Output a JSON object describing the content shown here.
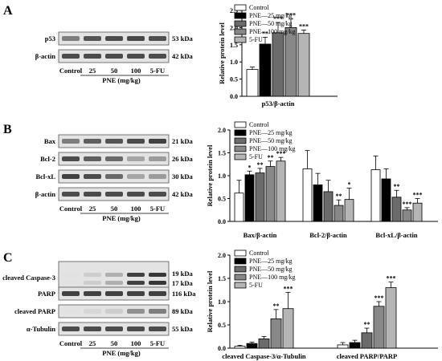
{
  "panels": [
    {
      "letter": "A",
      "blot": {
        "rows": [
          {
            "name": "p53",
            "kda": "53 kDa",
            "intensity": [
              0.55,
              0.75,
              0.8,
              0.82,
              0.78
            ]
          },
          {
            "name": "β-actin",
            "kda": "42 kDa",
            "intensity": [
              0.8,
              0.8,
              0.8,
              0.8,
              0.8
            ]
          }
        ],
        "lanes": [
          "Control",
          "25",
          "50",
          "100",
          "5-FU"
        ],
        "xlabel": "PNE (mg/kg)"
      },
      "chart_data": {
        "type": "bar",
        "ylabel": "Relative protein level",
        "ylim": [
          0,
          2.5
        ],
        "yticks": [
          "0.0",
          "0.5",
          "1.0",
          "1.5",
          "2.0",
          "2.5"
        ],
        "categories": [
          "p53/β-actin"
        ],
        "series": [
          {
            "name": "Control",
            "values": [
              0.78
            ],
            "err": [
              0.07
            ],
            "sig": [
              ""
            ]
          },
          {
            "name": "PNE—25 mg/kg",
            "values": [
              1.52
            ],
            "err": [
              0.2
            ],
            "sig": [
              "**"
            ]
          },
          {
            "name": "PNE—50 mg/kg",
            "values": [
              1.85
            ],
            "err": [
              0.3
            ],
            "sig": [
              "***"
            ]
          },
          {
            "name": "PNE—100 mg/kg",
            "values": [
              2.0
            ],
            "err": [
              0.25
            ],
            "sig": [
              "***"
            ]
          },
          {
            "name": "5-FU",
            "values": [
              1.83
            ],
            "err": [
              0.1
            ],
            "sig": [
              "***"
            ]
          }
        ]
      }
    },
    {
      "letter": "B",
      "blot": {
        "rows": [
          {
            "name": "Bax",
            "kda": "21 kDa",
            "intensity": [
              0.55,
              0.7,
              0.75,
              0.8,
              0.85
            ]
          },
          {
            "name": "Bcl-2",
            "kda": "26 kDa",
            "intensity": [
              0.8,
              0.7,
              0.65,
              0.35,
              0.4
            ]
          },
          {
            "name": "Bcl-xL",
            "kda": "30 kDa",
            "intensity": [
              0.85,
              0.8,
              0.65,
              0.35,
              0.4
            ]
          },
          {
            "name": "β-actin",
            "kda": "42 kDa",
            "intensity": [
              0.8,
              0.8,
              0.8,
              0.8,
              0.8
            ]
          }
        ],
        "lanes": [
          "Control",
          "25",
          "50",
          "100",
          "5-FU"
        ],
        "xlabel": "PNE (mg/kg)"
      },
      "chart_data": {
        "type": "bar",
        "ylabel": "Relative protein level",
        "ylim": [
          0,
          2.0
        ],
        "yticks": [
          "0.0",
          "0.5",
          "1.0",
          "1.5",
          "2.0"
        ],
        "categories": [
          "Bax/β-actin",
          "Bcl-2/β-actin",
          "Bcl-xL/β-actin"
        ],
        "series": [
          {
            "name": "Control",
            "values": [
              0.62,
              1.15,
              1.13
            ],
            "err": [
              0.28,
              0.4,
              0.3
            ],
            "sig": [
              "",
              "",
              ""
            ]
          },
          {
            "name": "PNE—25 mg/kg",
            "values": [
              1.02,
              0.8,
              0.93
            ],
            "err": [
              0.08,
              0.25,
              0.22
            ],
            "sig": [
              "*",
              "",
              ""
            ]
          },
          {
            "name": "PNE—50 mg/kg",
            "values": [
              1.06,
              0.65,
              0.53
            ],
            "err": [
              0.1,
              0.25,
              0.15
            ],
            "sig": [
              "**",
              "",
              "**"
            ]
          },
          {
            "name": "PNE—100 mg/kg",
            "values": [
              1.2,
              0.35,
              0.25
            ],
            "err": [
              0.12,
              0.12,
              0.05
            ],
            "sig": [
              "**",
              "**",
              "***"
            ]
          },
          {
            "name": "5-FU",
            "values": [
              1.32,
              0.48,
              0.4
            ],
            "err": [
              0.08,
              0.25,
              0.1
            ],
            "sig": [
              "***",
              "*",
              "***"
            ]
          }
        ]
      }
    },
    {
      "letter": "C",
      "blot": {
        "rows": [
          {
            "name": "cleaved Caspase-3",
            "kda": "19 kDa",
            "kda2": "17 kDa",
            "intensity": [
              0.05,
              0.15,
              0.3,
              0.85,
              0.9
            ]
          },
          {
            "name": "PARP",
            "kda": "116 kDa",
            "intensity": [
              0.85,
              0.85,
              0.85,
              0.85,
              0.85
            ]
          },
          {
            "name": "cleaved PARP",
            "kda": "89 kDa",
            "intensity": [
              0.05,
              0.1,
              0.15,
              0.45,
              0.55
            ]
          },
          {
            "name": "α-Tubulin",
            "kda": "55 kDa",
            "intensity": [
              0.8,
              0.8,
              0.8,
              0.8,
              0.8
            ]
          }
        ],
        "lanes": [
          "Control",
          "25",
          "50",
          "100",
          "5-FU"
        ],
        "xlabel": "PNE (mg/kg)"
      },
      "chart_data": {
        "type": "bar",
        "ylabel": "Relative protein level",
        "ylim": [
          0,
          2.0
        ],
        "yticks": [
          "0.0",
          "0.5",
          "1.0",
          "1.5",
          "2.0"
        ],
        "categories": [
          "cleaved Caspase-3/α-Tubulin",
          "cleaved PARP/PARP"
        ],
        "series": [
          {
            "name": "Control",
            "values": [
              0.04,
              0.07
            ],
            "err": [
              0.02,
              0.05
            ],
            "sig": [
              "",
              ""
            ]
          },
          {
            "name": "PNE—25 mg/kg",
            "values": [
              0.1,
              0.12
            ],
            "err": [
              0.03,
              0.05
            ],
            "sig": [
              "",
              ""
            ]
          },
          {
            "name": "PNE—50 mg/kg",
            "values": [
              0.2,
              0.33
            ],
            "err": [
              0.05,
              0.1
            ],
            "sig": [
              "",
              "**"
            ]
          },
          {
            "name": "PNE—100 mg/kg",
            "values": [
              0.63,
              0.9
            ],
            "err": [
              0.2,
              0.1
            ],
            "sig": [
              "**",
              "***"
            ]
          },
          {
            "name": "5-FU",
            "values": [
              0.85,
              1.3
            ],
            "err": [
              0.35,
              0.12
            ],
            "sig": [
              "***",
              "***"
            ]
          }
        ]
      }
    }
  ],
  "series_colors": [
    "#ffffff",
    "#000000",
    "#6b6b6b",
    "#888888",
    "#b5b5b5"
  ]
}
